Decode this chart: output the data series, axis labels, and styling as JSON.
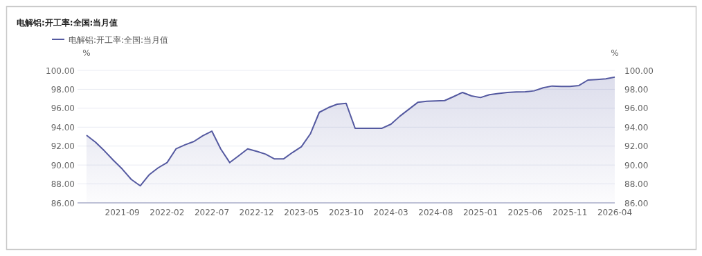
{
  "chart_data": {
    "type": "area",
    "title": "电解铝:开工率:全国:当月值",
    "ylabel": "%",
    "y2label": "%",
    "x": [
      "2021-05",
      "2021-06",
      "2021-07",
      "2021-08",
      "2021-09",
      "2021-10",
      "2021-11",
      "2021-12",
      "2022-01",
      "2022-02",
      "2022-03",
      "2022-04",
      "2022-05",
      "2022-06",
      "2022-07",
      "2022-08",
      "2022-09",
      "2022-10",
      "2022-11",
      "2022-12",
      "2023-01",
      "2023-02",
      "2023-03",
      "2023-04",
      "2023-05",
      "2023-06",
      "2023-07",
      "2023-08",
      "2023-09",
      "2023-10",
      "2023-11",
      "2023-12",
      "2024-01",
      "2024-02",
      "2024-03",
      "2024-04",
      "2024-05",
      "2024-06",
      "2024-07",
      "2024-08",
      "2024-09",
      "2024-10",
      "2024-11",
      "2024-12",
      "2025-01",
      "2025-02",
      "2025-03",
      "2025-04",
      "2025-05",
      "2025-06",
      "2025-07",
      "2025-08",
      "2025-09",
      "2025-10",
      "2025-11",
      "2025-12",
      "2026-01",
      "2026-02",
      "2026-03",
      "2026-04"
    ],
    "series": [
      {
        "name": "电解铝:开工率:全国:当月值",
        "color": "#5459a0",
        "values": [
          93.15,
          92.42,
          91.5,
          90.5,
          89.57,
          88.48,
          87.8,
          88.97,
          89.7,
          90.26,
          91.71,
          92.13,
          92.49,
          93.1,
          93.58,
          91.69,
          90.26,
          90.98,
          91.71,
          91.45,
          91.15,
          90.64,
          90.64,
          91.32,
          91.93,
          93.29,
          95.57,
          96.06,
          96.43,
          96.52,
          93.88,
          93.88,
          93.88,
          93.88,
          94.31,
          95.16,
          95.89,
          96.62,
          96.74,
          96.77,
          96.81,
          97.23,
          97.67,
          97.3,
          97.13,
          97.43,
          97.55,
          97.67,
          97.72,
          97.74,
          97.84,
          98.16,
          98.35,
          98.3,
          98.3,
          98.4,
          98.98,
          99.03,
          99.1,
          99.29
        ]
      }
    ],
    "xlim": [
      "2021-04",
      "2026-04"
    ],
    "xticks": [
      "2021-09",
      "2022-02",
      "2022-07",
      "2022-12",
      "2023-05",
      "2023-10",
      "2024-03",
      "2024-08",
      "2025-01",
      "2025-06",
      "2025-11",
      "2026-04"
    ],
    "ylim": [
      86,
      100
    ],
    "yticks": [
      {
        "value": 86,
        "label": "86.00"
      },
      {
        "value": 88,
        "label": "88.00"
      },
      {
        "value": 90,
        "label": "90.00"
      },
      {
        "value": 92,
        "label": "92.00"
      },
      {
        "value": 94,
        "label": "94.00"
      },
      {
        "value": 96,
        "label": "96.00"
      },
      {
        "value": 98,
        "label": "98.00"
      },
      {
        "value": 100,
        "label": "100.00"
      }
    ],
    "y2lim": [
      86,
      100
    ],
    "y2ticks": [
      {
        "value": 86,
        "label": "86.00"
      },
      {
        "value": 88,
        "label": "88.00"
      },
      {
        "value": 90,
        "label": "90.00"
      },
      {
        "value": 92,
        "label": "92.00"
      },
      {
        "value": 94,
        "label": "94.00"
      },
      {
        "value": 96,
        "label": "96.00"
      },
      {
        "value": 98,
        "label": "98.00"
      },
      {
        "value": 100,
        "label": "100.00"
      }
    ],
    "grid": "y",
    "legend": "top left"
  }
}
